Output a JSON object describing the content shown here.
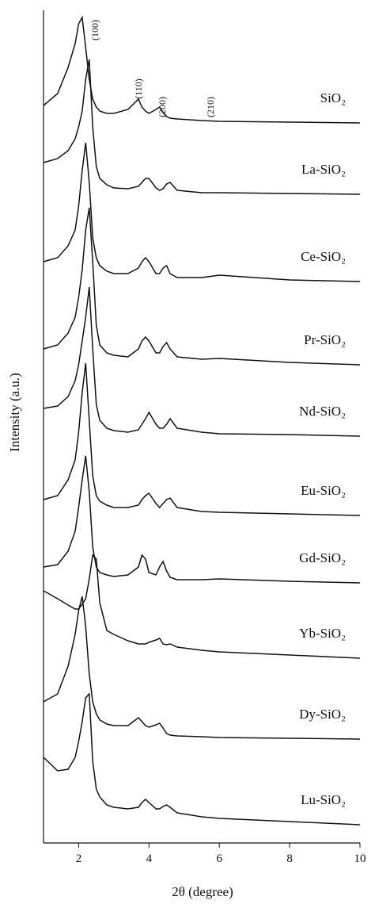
{
  "chart_data": {
    "type": "line",
    "x_label": "2θ (degree)",
    "y_label": "Intensity (a.u.)",
    "xlim": [
      1,
      10
    ],
    "xticks": [
      2,
      4,
      6,
      8,
      10
    ],
    "ylim": [
      0,
      1050
    ],
    "annotations": [
      "(100)",
      "(110)",
      "(200)",
      "(210)"
    ],
    "x": [
      1.0,
      1.4,
      1.7,
      1.9,
      2.0,
      2.1,
      2.2,
      2.3,
      2.4,
      2.5,
      2.6,
      2.8,
      3.0,
      3.4,
      3.7,
      3.8,
      3.9,
      4.0,
      4.2,
      4.3,
      4.4,
      4.5,
      4.6,
      4.8,
      5.5,
      6.0,
      8.0,
      10.0
    ],
    "series": [
      {
        "name": "SiO₂",
        "color": "#111111",
        "values": [
          930,
          945,
          978,
          1008,
          1033,
          1041,
          1003,
          963,
          938,
          928,
          923,
          920,
          920,
          925,
          938,
          928,
          923,
          920,
          925,
          928,
          921,
          916,
          914,
          913,
          911,
          910,
          909,
          908
        ]
      },
      {
        "name": "La-SiO₂",
        "color": "#111111",
        "values": [
          858,
          863,
          873,
          888,
          903,
          923,
          963,
          988,
          903,
          853,
          838,
          830,
          826,
          825,
          828,
          833,
          838,
          838,
          826,
          823,
          825,
          831,
          833,
          823,
          820,
          820,
          819,
          818
        ]
      },
      {
        "name": "Ce-SiO₂",
        "color": "#111111",
        "values": [
          733,
          738,
          753,
          773,
          803,
          848,
          883,
          833,
          763,
          738,
          728,
          721,
          718,
          718,
          725,
          733,
          738,
          733,
          718,
          718,
          725,
          728,
          718,
          713,
          713,
          716,
          710,
          708
        ]
      },
      {
        "name": "Pr-SiO₂",
        "color": "#111111",
        "values": [
          623,
          628,
          643,
          663,
          688,
          723,
          773,
          801,
          733,
          653,
          628,
          618,
          615,
          613,
          623,
          633,
          638,
          633,
          618,
          618,
          626,
          631,
          623,
          613,
          610,
          611,
          606,
          603
        ]
      },
      {
        "name": "Nd-SiO₂",
        "color": "#111111",
        "values": [
          548,
          551,
          563,
          583,
          603,
          633,
          663,
          701,
          623,
          553,
          533,
          523,
          520,
          518,
          521,
          528,
          535,
          543,
          528,
          523,
          523,
          528,
          535,
          523,
          518,
          516,
          515,
          513
        ]
      },
      {
        "name": "Eu-SiO₂",
        "color": "#111111",
        "values": [
          433,
          438,
          458,
          483,
          518,
          568,
          605,
          533,
          463,
          438,
          431,
          426,
          423,
          423,
          426,
          433,
          438,
          441,
          428,
          423,
          428,
          433,
          435,
          423,
          418,
          417,
          415,
          413
        ]
      },
      {
        "name": "Gd-SiO₂",
        "color": "#111111",
        "values": [
          348,
          351,
          368,
          393,
          423,
          458,
          488,
          443,
          373,
          348,
          341,
          338,
          336,
          338,
          348,
          363,
          358,
          341,
          338,
          348,
          355,
          343,
          335,
          332,
          332,
          333,
          330,
          328
        ]
      },
      {
        "name": "Yb-SiO₂",
        "color": "#111111",
        "values": [
          318,
          308,
          300,
          295,
          295,
          301,
          308,
          333,
          363,
          358,
          303,
          268,
          263,
          255,
          251,
          251,
          251,
          253,
          256,
          258,
          251,
          250,
          251,
          247,
          243,
          241,
          237,
          233
        ]
      },
      {
        "name": "Dy-SiO₂",
        "color": "#111111",
        "values": [
          178,
          188,
          223,
          263,
          293,
          311,
          273,
          213,
          178,
          163,
          155,
          150,
          148,
          148,
          158,
          153,
          148,
          146,
          149,
          151,
          145,
          138,
          136,
          135,
          134,
          133,
          132,
          131
        ]
      },
      {
        "name": "Lu-SiO₂",
        "color": "#111111",
        "values": [
          108,
          91,
          93,
          108,
          128,
          153,
          183,
          188,
          103,
          68,
          58,
          48,
          45,
          43,
          45,
          51,
          55,
          51,
          43,
          43,
          46,
          48,
          45,
          38,
          33,
          31,
          27,
          23
        ]
      }
    ]
  }
}
